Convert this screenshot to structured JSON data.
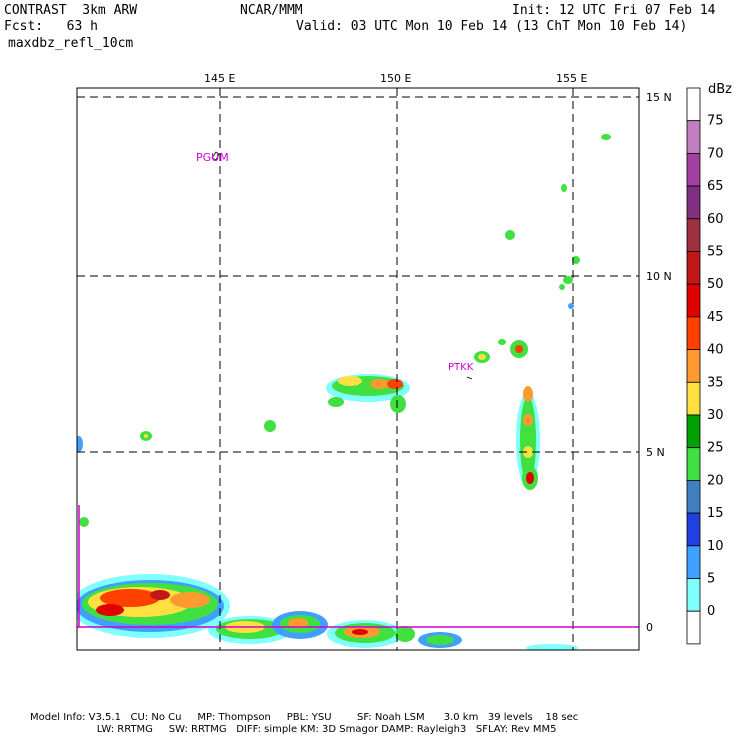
{
  "header": {
    "line1_left": "CONTRAST  3km ARW",
    "line1_center": "NCAR/MMM",
    "line1_right": "Init: 12 UTC Fri 07 Feb 14",
    "line2_left": "Fcst:   63 h",
    "line2_right": "Valid: 03 UTC Mon 10 Feb 14 (13 ChT Mon 10 Feb 14)",
    "line3_left": "maxdbz_refl_10cm"
  },
  "map": {
    "lon_labels": [
      "145 E",
      "150 E",
      "155 E"
    ],
    "lat_labels": [
      "15 N",
      "10 N",
      "5 N",
      "0"
    ],
    "stations": [
      {
        "label": "PGUM"
      },
      {
        "label": "PTKK"
      }
    ]
  },
  "colorbar": {
    "unit": "dBz",
    "labels": [
      "75",
      "70",
      "65",
      "60",
      "55",
      "50",
      "45",
      "40",
      "35",
      "30",
      "25",
      "20",
      "15",
      "10",
      "5",
      "0"
    ],
    "colors": [
      "#ffffff",
      "#c080c0",
      "#a040a0",
      "#803080",
      "#a03040",
      "#c01818",
      "#e00000",
      "#ff4000",
      "#ff9a30",
      "#ffe040",
      "#00a000",
      "#40e040",
      "#4080c0",
      "#2040e0",
      "#40a0ff",
      "#80ffff",
      "#ffffff"
    ]
  },
  "footer": {
    "line1": "Model Info: V3.5.1   CU: No Cu     MP: Thompson     PBL: YSU        SF: Noah LSM      3.0 km   39 levels    18 sec",
    "line2": "                     LW: RRTMG     SW: RRTMG   DIFF: simple KM: 3D Smagor DAMP: Rayleigh3   SFLAY: Rev MM5"
  }
}
